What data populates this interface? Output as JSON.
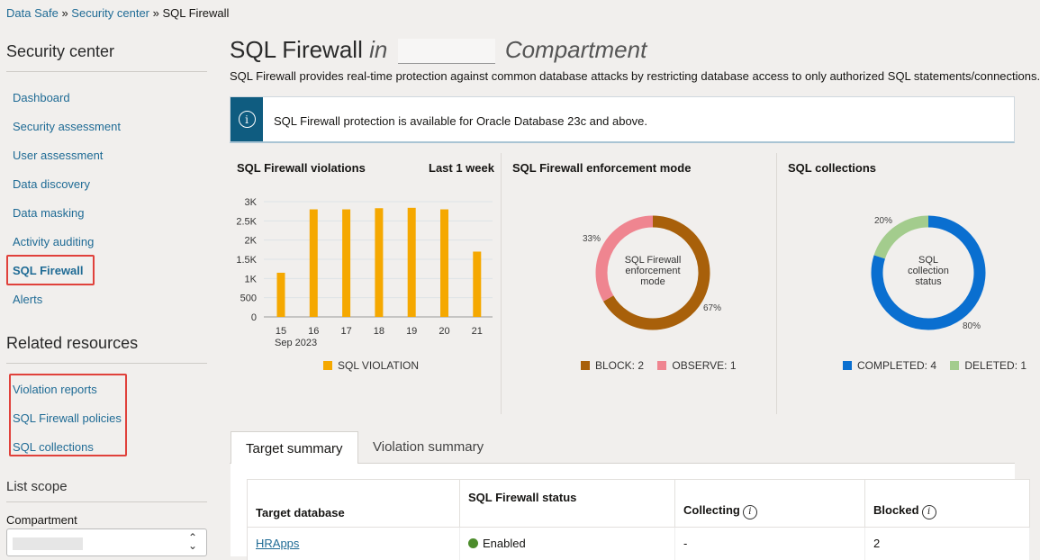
{
  "breadcrumb": [
    {
      "label": "Data Safe"
    },
    {
      "label": "Security center"
    },
    {
      "label": "SQL Firewall"
    }
  ],
  "sidebar": {
    "title": "Security center",
    "items": [
      {
        "label": "Dashboard"
      },
      {
        "label": "Security assessment"
      },
      {
        "label": "User assessment"
      },
      {
        "label": "Data discovery"
      },
      {
        "label": "Data masking"
      },
      {
        "label": "Activity auditing"
      },
      {
        "label": "SQL Firewall",
        "active": true
      },
      {
        "label": "Alerts"
      }
    ],
    "related_title": "Related resources",
    "related": [
      {
        "label": "Violation reports"
      },
      {
        "label": "SQL Firewall policies"
      },
      {
        "label": "SQL collections"
      }
    ],
    "scope_title": "List scope",
    "compartment_label": "Compartment",
    "compartment_value": ""
  },
  "page": {
    "title": "SQL Firewall",
    "title_in": "in",
    "title_suffix": "Compartment",
    "description": "SQL Firewall provides real-time protection against common database attacks by restricting database access to only authorized SQL statements/connections.",
    "banner": "SQL Firewall protection is available for Oracle Database 23c and above.",
    "info_icon": "info-icon"
  },
  "colors": {
    "violation": "#f5a800",
    "block": "#a8600a",
    "observe": "#ef8590",
    "completed": "#0a6fd0",
    "deleted": "#a3cc8d",
    "link": "#1f6b95",
    "enabled": "#4c8c2b"
  },
  "chart_data": [
    {
      "type": "bar",
      "title": "SQL Firewall violations",
      "period": "Last 1 week",
      "categories": [
        "15",
        "16",
        "17",
        "18",
        "19",
        "20",
        "21"
      ],
      "x_sublabel": "Sep 2023",
      "series": [
        {
          "name": "SQL VIOLATION",
          "values": [
            1150,
            2800,
            2800,
            2830,
            2840,
            2800,
            1700
          ]
        }
      ],
      "yticks": [
        "0",
        "500",
        "1K",
        "1.5K",
        "2K",
        "2.5K",
        "3K"
      ],
      "ylim": [
        0,
        3000
      ],
      "grid": true,
      "legend": "bottom"
    },
    {
      "type": "pie",
      "title": "SQL Firewall enforcement mode",
      "center_label": "SQL Firewall enforcement mode",
      "slices": [
        {
          "name": "BLOCK",
          "count": 2,
          "percent": "67%"
        },
        {
          "name": "OBSERVE",
          "count": 1,
          "percent": "33%"
        }
      ],
      "legend_labels": [
        "BLOCK: 2",
        "OBSERVE: 1"
      ],
      "legend": "bottom"
    },
    {
      "type": "pie",
      "title": "SQL collections",
      "center_label": "SQL collection status",
      "slices": [
        {
          "name": "COMPLETED",
          "count": 4,
          "percent": "80%"
        },
        {
          "name": "DELETED",
          "count": 1,
          "percent": "20%"
        }
      ],
      "legend_labels": [
        "COMPLETED: 4",
        "DELETED: 1"
      ],
      "legend": "bottom"
    }
  ],
  "tabs": [
    {
      "label": "Target summary",
      "active": true
    },
    {
      "label": "Violation summary"
    }
  ],
  "table": {
    "columns": [
      "Target database",
      "SQL Firewall status",
      "Collecting",
      "Blocked"
    ],
    "rows": [
      {
        "target": "HRApps",
        "status": "Enabled",
        "collecting": "-",
        "blocked": "2"
      }
    ]
  }
}
